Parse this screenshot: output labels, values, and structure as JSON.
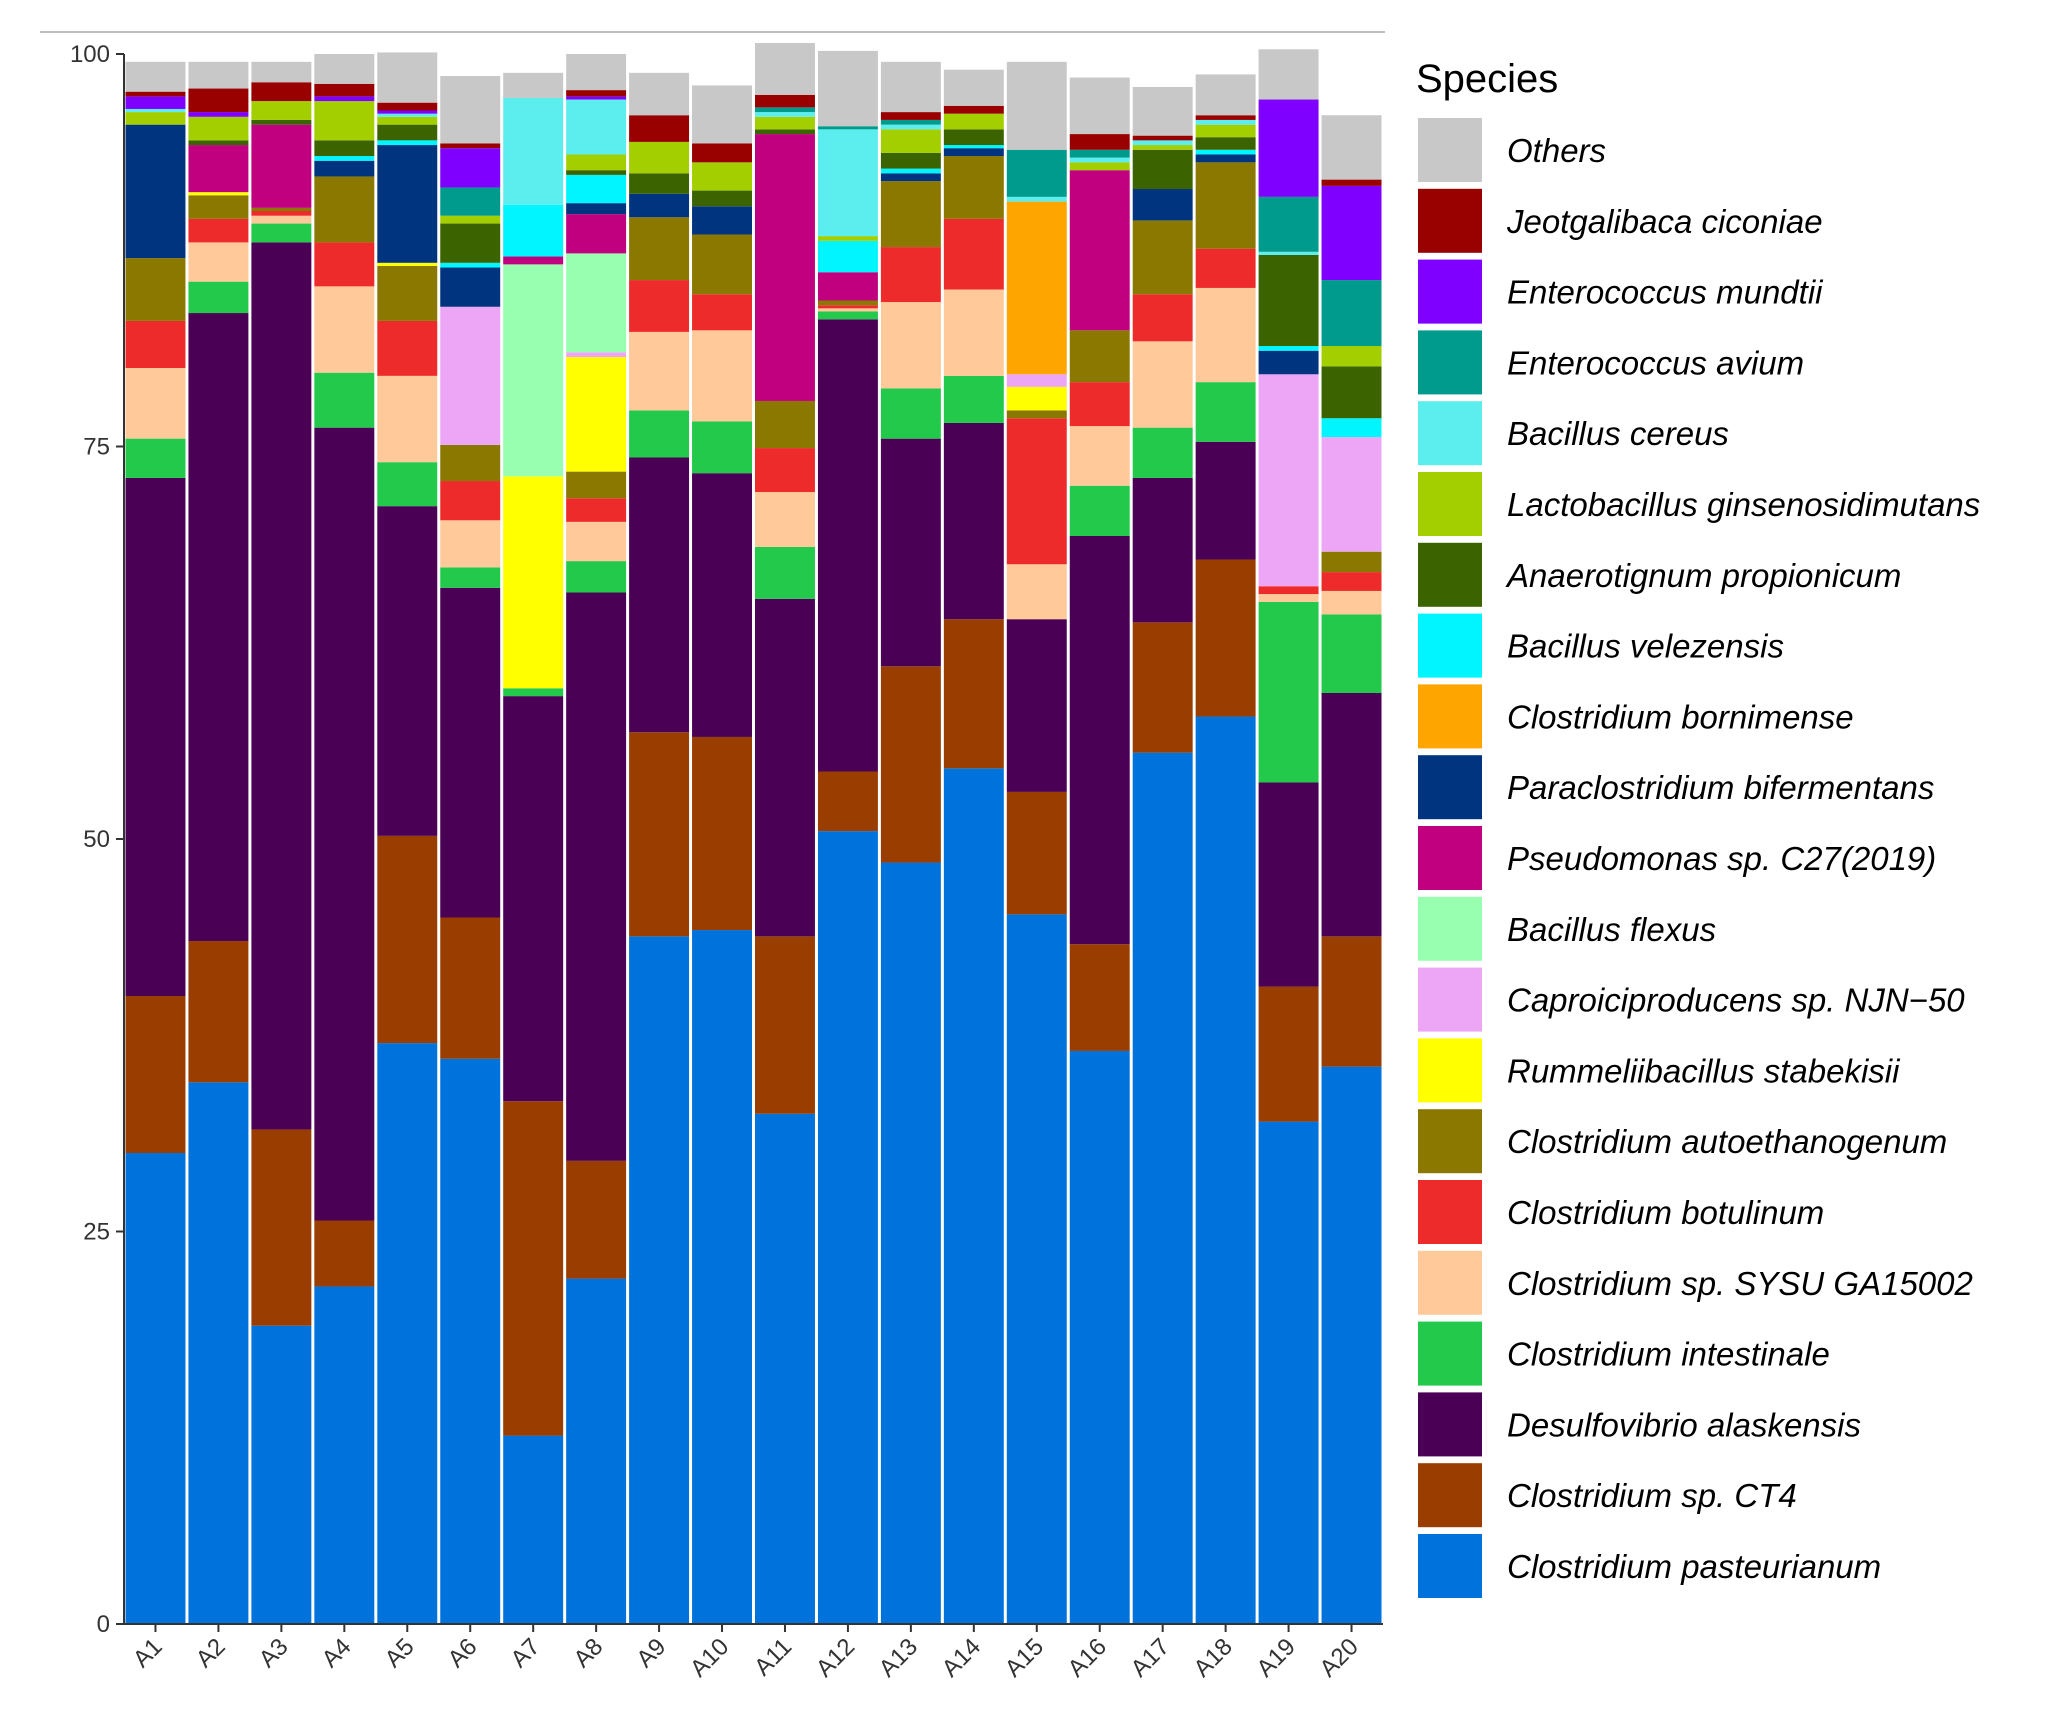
{
  "chart_data": {
    "type": "bar",
    "stacked": true,
    "title": "",
    "xlabel": "",
    "ylabel": "",
    "ylim": [
      0,
      100
    ],
    "yticks": [
      0,
      25,
      50,
      75,
      100
    ],
    "grid": false,
    "legend_title": "Species",
    "legend_placement": "right",
    "categories": [
      "A1",
      "A2",
      "A3",
      "A4",
      "A5",
      "A6",
      "A7",
      "A8",
      "A9",
      "A10",
      "A11",
      "A12",
      "A13",
      "A14",
      "A15",
      "A16",
      "A17",
      "A18",
      "A19",
      "A20"
    ],
    "series": [
      {
        "name": "Clostridium pasteurianum",
        "color": "#0072DB",
        "values": [
          30,
          34.5,
          19,
          21.5,
          37,
          36,
          12,
          22,
          43.8,
          44.2,
          32.5,
          50.5,
          48.5,
          54.5,
          45.2,
          36.5,
          55.5,
          57.8,
          32,
          35.5
        ]
      },
      {
        "name": "Clostridium sp. CT4",
        "color": "#993D00",
        "values": [
          10,
          9,
          12.5,
          4.2,
          13.2,
          9,
          21.3,
          7.5,
          13,
          12.3,
          11.3,
          3.8,
          12.5,
          9.5,
          7.8,
          6.8,
          8.3,
          10,
          8.6,
          8.3
        ]
      },
      {
        "name": "Desulfovibrio alaskensis",
        "color": "#4A0055",
        "values": [
          33,
          40,
          56.5,
          50.5,
          21,
          21,
          25.8,
          36.2,
          17.5,
          16.8,
          21.5,
          28.8,
          14.5,
          12.5,
          11,
          26,
          9.2,
          7.5,
          13,
          15.5
        ]
      },
      {
        "name": "Clostridium intestinale",
        "color": "#22C94B",
        "values": [
          2.5,
          2,
          1.2,
          3.5,
          2.8,
          1.3,
          0.5,
          2,
          3,
          3.3,
          3.3,
          0.5,
          3.2,
          3,
          0,
          3.2,
          3.2,
          3.8,
          11.5,
          5
        ]
      },
      {
        "name": "Clostridium sp. SYSU GA15002",
        "color": "#FFC99A",
        "values": [
          4.5,
          2.5,
          0.5,
          5.5,
          5.5,
          3,
          0,
          2.5,
          5,
          5.8,
          3.5,
          0.2,
          5.5,
          5.5,
          3.5,
          3.8,
          5.5,
          6,
          0.5,
          1.5
        ]
      },
      {
        "name": "Clostridium botulinum",
        "color": "#EE2B2B",
        "values": [
          3,
          1.5,
          0.3,
          2.8,
          3.5,
          2.5,
          0,
          1.5,
          3.3,
          2.3,
          2.8,
          0.2,
          3.5,
          4.5,
          9.3,
          2.8,
          3,
          2.5,
          0.5,
          1.2
        ]
      },
      {
        "name": "Clostridium autoethanogenum",
        "color": "#8B7800",
        "values": [
          4,
          1.5,
          0.2,
          4.2,
          3.5,
          2.3,
          0,
          1.7,
          4,
          3.8,
          3,
          0.3,
          4.2,
          4,
          0.5,
          3.3,
          4.7,
          5.5,
          0,
          1.3
        ]
      },
      {
        "name": "Rummeliibacillus stabekisii",
        "color": "#FFFF00",
        "values": [
          0,
          0.2,
          0,
          0,
          0.2,
          0,
          13.5,
          7.3,
          0,
          0,
          0,
          0,
          0,
          0,
          1.5,
          0,
          0,
          0,
          0,
          0
        ]
      },
      {
        "name": "Caproiciproducens sp. NJN−50",
        "color": "#EDA6F5",
        "values": [
          0,
          0,
          0,
          0,
          0,
          8.8,
          0,
          0.3,
          0,
          0,
          0,
          0,
          0,
          0,
          0.8,
          0,
          0,
          0,
          13.5,
          7.3
        ]
      },
      {
        "name": "Bacillus flexus",
        "color": "#99FFB0",
        "values": [
          0,
          0,
          0,
          0,
          0,
          0,
          13.5,
          6.3,
          0,
          0,
          0,
          0,
          0,
          0,
          0,
          0,
          0,
          0,
          0,
          0
        ]
      },
      {
        "name": "Pseudomonas sp. C27(2019)",
        "color": "#C0007F",
        "values": [
          0,
          3,
          5.3,
          0,
          0,
          0,
          0.5,
          2.5,
          0,
          0,
          17,
          1.8,
          0,
          0,
          0,
          10.2,
          0,
          0,
          0,
          0
        ]
      },
      {
        "name": "Paraclostridium bifermentans",
        "color": "#00347F",
        "values": [
          8.5,
          0,
          0,
          1,
          7.5,
          2.5,
          0,
          0.7,
          1.5,
          1.8,
          0,
          0,
          0.5,
          0.5,
          0,
          0,
          2,
          0.5,
          1.5,
          0
        ]
      },
      {
        "name": "Clostridium bornimense",
        "color": "#FFA500",
        "values": [
          0,
          0,
          0,
          0,
          0,
          0,
          0,
          0,
          0,
          0,
          0,
          0,
          0,
          0,
          11,
          0,
          0,
          0,
          0,
          0
        ]
      },
      {
        "name": "Bacillus velezensis",
        "color": "#00F5FF",
        "values": [
          0,
          0,
          0,
          0.3,
          0.3,
          0.3,
          3.3,
          1.8,
          0,
          0,
          0,
          2,
          0.3,
          0.2,
          0,
          0,
          0,
          0.3,
          0.3,
          1.2
        ]
      },
      {
        "name": "Anaerotignum propionicum",
        "color": "#3B6400",
        "values": [
          0,
          0.3,
          0.3,
          1,
          1,
          2.5,
          0,
          0.3,
          1.3,
          1,
          0.3,
          0,
          1,
          1,
          0,
          0,
          2.5,
          0.8,
          5.8,
          3.3
        ]
      },
      {
        "name": "Lactobacillus ginsenosidimutans",
        "color": "#A3CE00",
        "values": [
          0.8,
          1.5,
          1.2,
          2.5,
          0.5,
          0.5,
          0,
          1,
          2,
          1.8,
          0.8,
          0.3,
          1.5,
          1,
          0,
          0.5,
          0.3,
          0.8,
          0,
          1.3
        ]
      },
      {
        "name": "Bacillus cereus",
        "color": "#5CEEEE",
        "values": [
          0.2,
          0,
          0,
          0,
          0.2,
          0,
          6.8,
          3.5,
          0,
          0,
          0.3,
          6.8,
          0.3,
          0,
          0.3,
          0.3,
          0.3,
          0.3,
          0.2,
          0
        ]
      },
      {
        "name": "Enterococcus avium",
        "color": "#009B8D",
        "values": [
          0,
          0,
          0,
          0,
          0,
          1.8,
          0,
          0,
          0,
          0,
          0.3,
          0.2,
          0.3,
          0,
          3,
          0.5,
          0,
          0,
          3.5,
          4.2
        ]
      },
      {
        "name": "Enterococcus mundtii",
        "color": "#7F00FF",
        "values": [
          0.8,
          0.3,
          0,
          0.3,
          0.2,
          2.5,
          0,
          0.2,
          0,
          0,
          0,
          0,
          0,
          0,
          0,
          0,
          0,
          0,
          6.2,
          6
        ]
      },
      {
        "name": "Jeotgalibaca ciconiae",
        "color": "#990000",
        "values": [
          0.3,
          1.5,
          1.2,
          0.8,
          0.5,
          0.3,
          0,
          0.4,
          1.7,
          1.2,
          0.8,
          0,
          0.5,
          0.5,
          0,
          1,
          0.3,
          0.3,
          0,
          0.4
        ]
      },
      {
        "name": "Others",
        "color": "#C8C8C8",
        "values": [
          1.9,
          1.7,
          1.3,
          1.9,
          3.2,
          4.3,
          1.6,
          2.3,
          2.7,
          3.7,
          3.3,
          4.8,
          3.2,
          2.3,
          5.6,
          3.6,
          3.1,
          2.6,
          3.2,
          4.1
        ]
      }
    ],
    "legend_order": [
      "Others",
      "Jeotgalibaca ciconiae",
      "Enterococcus mundtii",
      "Enterococcus avium",
      "Bacillus cereus",
      "Lactobacillus ginsenosidimutans",
      "Anaerotignum propionicum",
      "Bacillus velezensis",
      "Clostridium bornimense",
      "Paraclostridium bifermentans",
      "Pseudomonas sp. C27(2019)",
      "Bacillus flexus",
      "Caproiciproducens sp. NJN−50",
      "Rummeliibacillus stabekisii",
      "Clostridium autoethanogenum",
      "Clostridium botulinum",
      "Clostridium sp. SYSU GA15002",
      "Clostridium intestinale",
      "Desulfovibrio alaskensis",
      "Clostridium sp. CT4",
      "Clostridium pasteurianum"
    ]
  }
}
